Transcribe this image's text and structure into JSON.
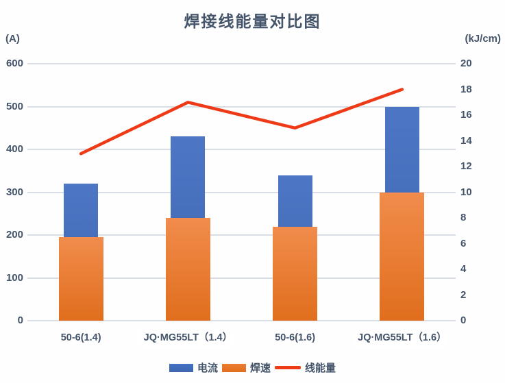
{
  "title": "焊接线能量对比图",
  "left_axis": {
    "unit": "(A)",
    "ticks": [
      "600",
      "500",
      "400",
      "300",
      "200",
      "100",
      "0"
    ],
    "min": 0,
    "max": 600,
    "step": 100
  },
  "right_axis": {
    "unit": "(kJ/cm)",
    "ticks": [
      "20",
      "18",
      "16",
      "14",
      "12",
      "10",
      "8",
      "6",
      "4",
      "2",
      "0"
    ],
    "min": 0,
    "max": 20,
    "step": 2
  },
  "legend": [
    {
      "label": "电流",
      "swatch": "box",
      "color": "#4472C4",
      "color2": "#3D64AF"
    },
    {
      "label": "焊速",
      "swatch": "box",
      "color": "#ED7D31",
      "color2": "#E06E1D"
    },
    {
      "label": "线能量",
      "swatch": "line",
      "color": "#EE3A17"
    }
  ],
  "colors": {
    "text": "#44546A",
    "grid": "#D9DDE5",
    "bar_current_top": "#4D77C5",
    "bar_current_bottom": "#3D64AF",
    "bar_speed_top": "#F18C4C",
    "bar_speed_bottom": "#E06E1D",
    "line_energy": "#EE3A17"
  },
  "chart_data": {
    "type": "bar+line combo",
    "title": "焊接线能量对比图",
    "categories": [
      "50-6(1.4)",
      "JQ·MG55LT（1.4）",
      "50-6(1.6)",
      "JQ·MG55LT（1.6）"
    ],
    "category_highlighted": [
      false,
      true,
      false,
      true
    ],
    "series": [
      {
        "name": "电流",
        "type": "bar",
        "axis": "left",
        "color": "#4472C4",
        "values": [
          320,
          430,
          340,
          500
        ]
      },
      {
        "name": "焊速",
        "type": "bar",
        "axis": "left",
        "color": "#ED7D31",
        "values": [
          195,
          240,
          220,
          300
        ]
      },
      {
        "name": "线能量",
        "type": "line",
        "axis": "right",
        "color": "#EE3A17",
        "values": [
          13,
          17,
          15,
          18
        ]
      }
    ],
    "left_ylabel": "(A)",
    "right_ylabel": "(kJ/cm)",
    "left_ylim": [
      0,
      600
    ],
    "right_ylim": [
      0,
      20
    ],
    "grid": true,
    "legend_position": "bottom"
  }
}
